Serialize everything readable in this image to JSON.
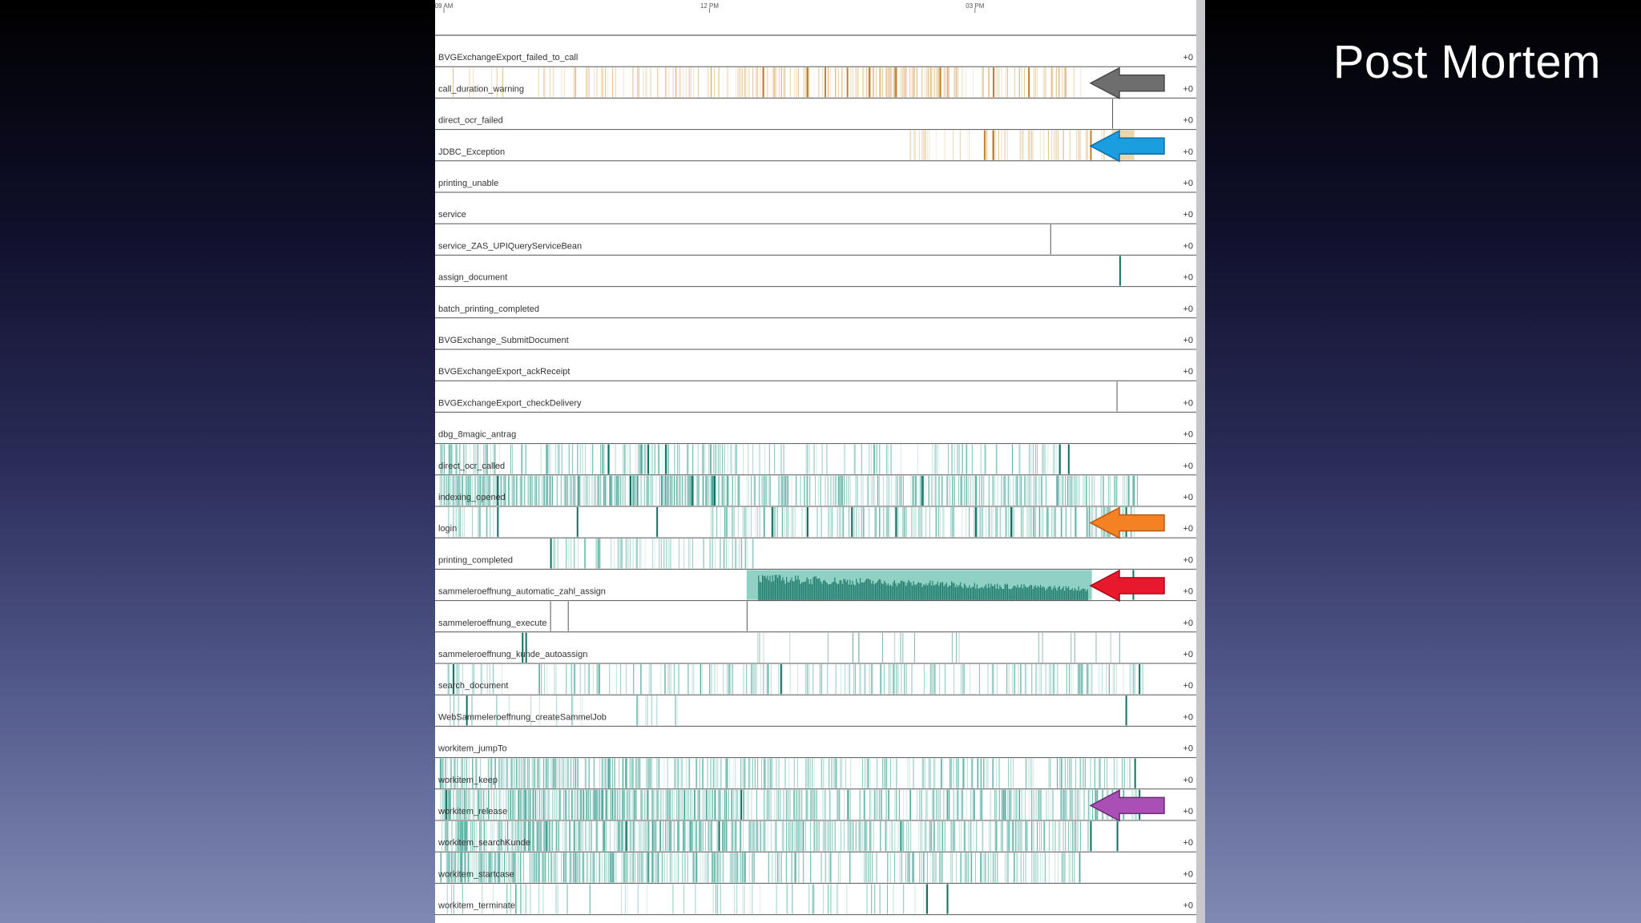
{
  "slide": {
    "title": "Post Mortem"
  },
  "colors": {
    "warn": "#d4a050",
    "warn_light": "#ecd7ac",
    "teal": "#2f9a8a",
    "teal_light": "#8fd1c3",
    "teal_dark": "#0f6f60",
    "gray": "#555555"
  },
  "chart_data": {
    "type": "timeline-strips",
    "time_axis": {
      "start_hour": 8.9,
      "end_hour": 17.5,
      "ticks": [
        {
          "hour": 9,
          "label": "09 AM"
        },
        {
          "hour": 12,
          "label": "12 PM"
        },
        {
          "hour": 15,
          "label": "03 PM"
        }
      ]
    },
    "rows": [
      {
        "name": "BVGExchangeExport_failed_to_call",
        "count": "+0",
        "color": "warn",
        "density": [],
        "marks": []
      },
      {
        "name": "call_duration_warning",
        "count": "+0",
        "color": "warn",
        "density": [
          [
            9.1,
            10.6,
            0.12
          ],
          [
            10.6,
            12.2,
            0.3
          ],
          [
            12.2,
            14.8,
            0.55
          ],
          [
            14.8,
            16.2,
            0.35
          ]
        ],
        "marks": [
          12.6,
          13.1,
          13.3,
          13.55,
          13.8,
          14.1,
          14.6,
          15.2,
          15.6
        ]
      },
      {
        "name": "direct_ocr_failed",
        "count": "+0",
        "color": "gray",
        "density": [],
        "marks": [
          16.55
        ]
      },
      {
        "name": "JDBC_Exception",
        "count": "+0",
        "color": "warn",
        "density": [
          [
            14.2,
            16.5,
            0.25
          ]
        ],
        "marks": [
          15.1,
          15.2,
          16.3
        ],
        "blocks": [
          [
            16.55,
            16.8,
            "warn_light"
          ]
        ]
      },
      {
        "name": "printing_unable",
        "count": "+0",
        "color": "teal",
        "density": [],
        "marks": []
      },
      {
        "name": "service",
        "count": "+0",
        "color": "teal",
        "density": [],
        "marks": []
      },
      {
        "name": "service_ZAS_UPIQueryServiceBean",
        "count": "+0",
        "color": "gray",
        "density": [],
        "marks": [
          15.85
        ]
      },
      {
        "name": "assign_document",
        "count": "+0",
        "color": "teal_dark",
        "density": [],
        "marks": [
          16.63
        ]
      },
      {
        "name": "batch_printing_completed",
        "count": "+0",
        "color": "teal",
        "density": [],
        "marks": []
      },
      {
        "name": "BVGExchange_SubmitDocument",
        "count": "+0",
        "color": "teal",
        "density": [],
        "marks": []
      },
      {
        "name": "BVGExchangeExport_ackReceipt",
        "count": "+0",
        "color": "teal",
        "density": [],
        "marks": []
      },
      {
        "name": "BVGExchangeExport_checkDelivery",
        "count": "+0",
        "color": "gray",
        "density": [],
        "marks": [
          16.6
        ]
      },
      {
        "name": "dbg_8magic_antrag",
        "count": "+0",
        "color": "teal",
        "density": [],
        "marks": []
      },
      {
        "name": "direct_ocr_called",
        "count": "+0",
        "color": "teal",
        "density": [
          [
            8.95,
            12.3,
            0.45
          ],
          [
            12.3,
            16.1,
            0.2
          ]
        ],
        "marks": [
          10.85,
          11.3,
          11.5,
          15.95,
          16.05
        ]
      },
      {
        "name": "indexing_opened",
        "count": "+0",
        "color": "teal",
        "density": [
          [
            8.95,
            12.1,
            1.0
          ],
          [
            12.1,
            16.85,
            0.6
          ]
        ],
        "marks": [
          9.6,
          11.1,
          11.8,
          12.05,
          14.4
        ]
      },
      {
        "name": "login",
        "count": "+0",
        "color": "teal",
        "density": [
          [
            9.0,
            9.6,
            0.3
          ],
          [
            12.0,
            16.8,
            0.45
          ]
        ],
        "marks": [
          9.6,
          10.5,
          11.4,
          12.7,
          13.1,
          13.6,
          14.1,
          15.0,
          15.4,
          16.7
        ]
      },
      {
        "name": "printing_completed",
        "count": "+0",
        "color": "teal",
        "density": [
          [
            10.2,
            12.1,
            0.3
          ],
          [
            12.1,
            12.5,
            0.5
          ]
        ],
        "marks": [
          10.2
        ]
      },
      {
        "name": "sammeleroeffnung_automatic_zahl_assign",
        "count": "+0",
        "color": "teal",
        "density": [],
        "marks": [
          16.78
        ],
        "blocks": [
          [
            12.42,
            16.32,
            "teal_light"
          ],
          [
            12.55,
            16.28,
            "teal_dark_fill"
          ]
        ]
      },
      {
        "name": "sammeleroeffnung_execute",
        "count": "+0",
        "color": "gray",
        "density": [],
        "marks": [
          10.2,
          10.4,
          12.42
        ]
      },
      {
        "name": "sammeleroeffnung_kunde_autoassign",
        "count": "+0",
        "color": "teal_dark",
        "density": [
          [
            12.5,
            16.9,
            0.05
          ]
        ],
        "marks": [
          9.88,
          9.92
        ]
      },
      {
        "name": "search_document",
        "count": "+0",
        "color": "teal",
        "density": [
          [
            9.0,
            9.7,
            0.25
          ],
          [
            10.0,
            16.9,
            0.3
          ]
        ],
        "marks": [
          9.1,
          12.8,
          16.85
        ]
      },
      {
        "name": "WebSammeleroeffnung_createSammelJob",
        "count": "+0",
        "color": "teal",
        "density": [
          [
            9.0,
            10.6,
            0.08
          ],
          [
            11.1,
            11.9,
            0.12
          ]
        ],
        "marks": [
          9.25,
          16.7
        ]
      },
      {
        "name": "workitem_jumpTo",
        "count": "+0",
        "color": "teal",
        "density": [],
        "marks": []
      },
      {
        "name": "workitem_keep",
        "count": "+0",
        "color": "teal",
        "density": [
          [
            8.95,
            12.4,
            0.65
          ],
          [
            12.4,
            16.8,
            0.35
          ]
        ],
        "marks": [
          16.8
        ]
      },
      {
        "name": "workitem_release",
        "count": "+0",
        "color": "teal",
        "density": [
          [
            8.95,
            12.4,
            1.0
          ],
          [
            12.4,
            16.85,
            0.55
          ]
        ],
        "marks": [
          9.02,
          12.35,
          16.85
        ]
      },
      {
        "name": "workitem_searchKunde",
        "count": "+0",
        "color": "teal",
        "density": [
          [
            8.95,
            12.5,
            0.9
          ],
          [
            12.5,
            16.3,
            0.55
          ]
        ],
        "marks": [
          11.05,
          12.1,
          16.3,
          16.6
        ]
      },
      {
        "name": "workitem_startcase",
        "count": "+0",
        "color": "teal",
        "density": [
          [
            8.95,
            12.4,
            0.85
          ],
          [
            12.4,
            16.2,
            0.4
          ]
        ],
        "marks": []
      },
      {
        "name": "workitem_terminate",
        "count": "+0",
        "color": "teal",
        "density": [
          [
            9.0,
            14.5,
            0.12
          ]
        ],
        "marks": [
          14.45,
          14.68
        ]
      }
    ],
    "annotations": [
      {
        "row": "call_duration_warning",
        "color": "#6e6e6e",
        "stroke": "#4a4a4a",
        "shape": "arrow-left"
      },
      {
        "row": "JDBC_Exception",
        "color": "#1a9ee0",
        "stroke": "#0a6fa8",
        "shape": "arrow-left"
      },
      {
        "row": "login",
        "color": "#f48224",
        "stroke": "#b85a10",
        "shape": "arrow-left"
      },
      {
        "row": "sammeleroeffnung_automatic_zahl_assign",
        "color": "#e8192c",
        "stroke": "#a00a18",
        "shape": "arrow-left"
      },
      {
        "row": "workitem_release",
        "color": "#a94fb5",
        "stroke": "#6a2c75",
        "shape": "arrow-left"
      }
    ]
  }
}
